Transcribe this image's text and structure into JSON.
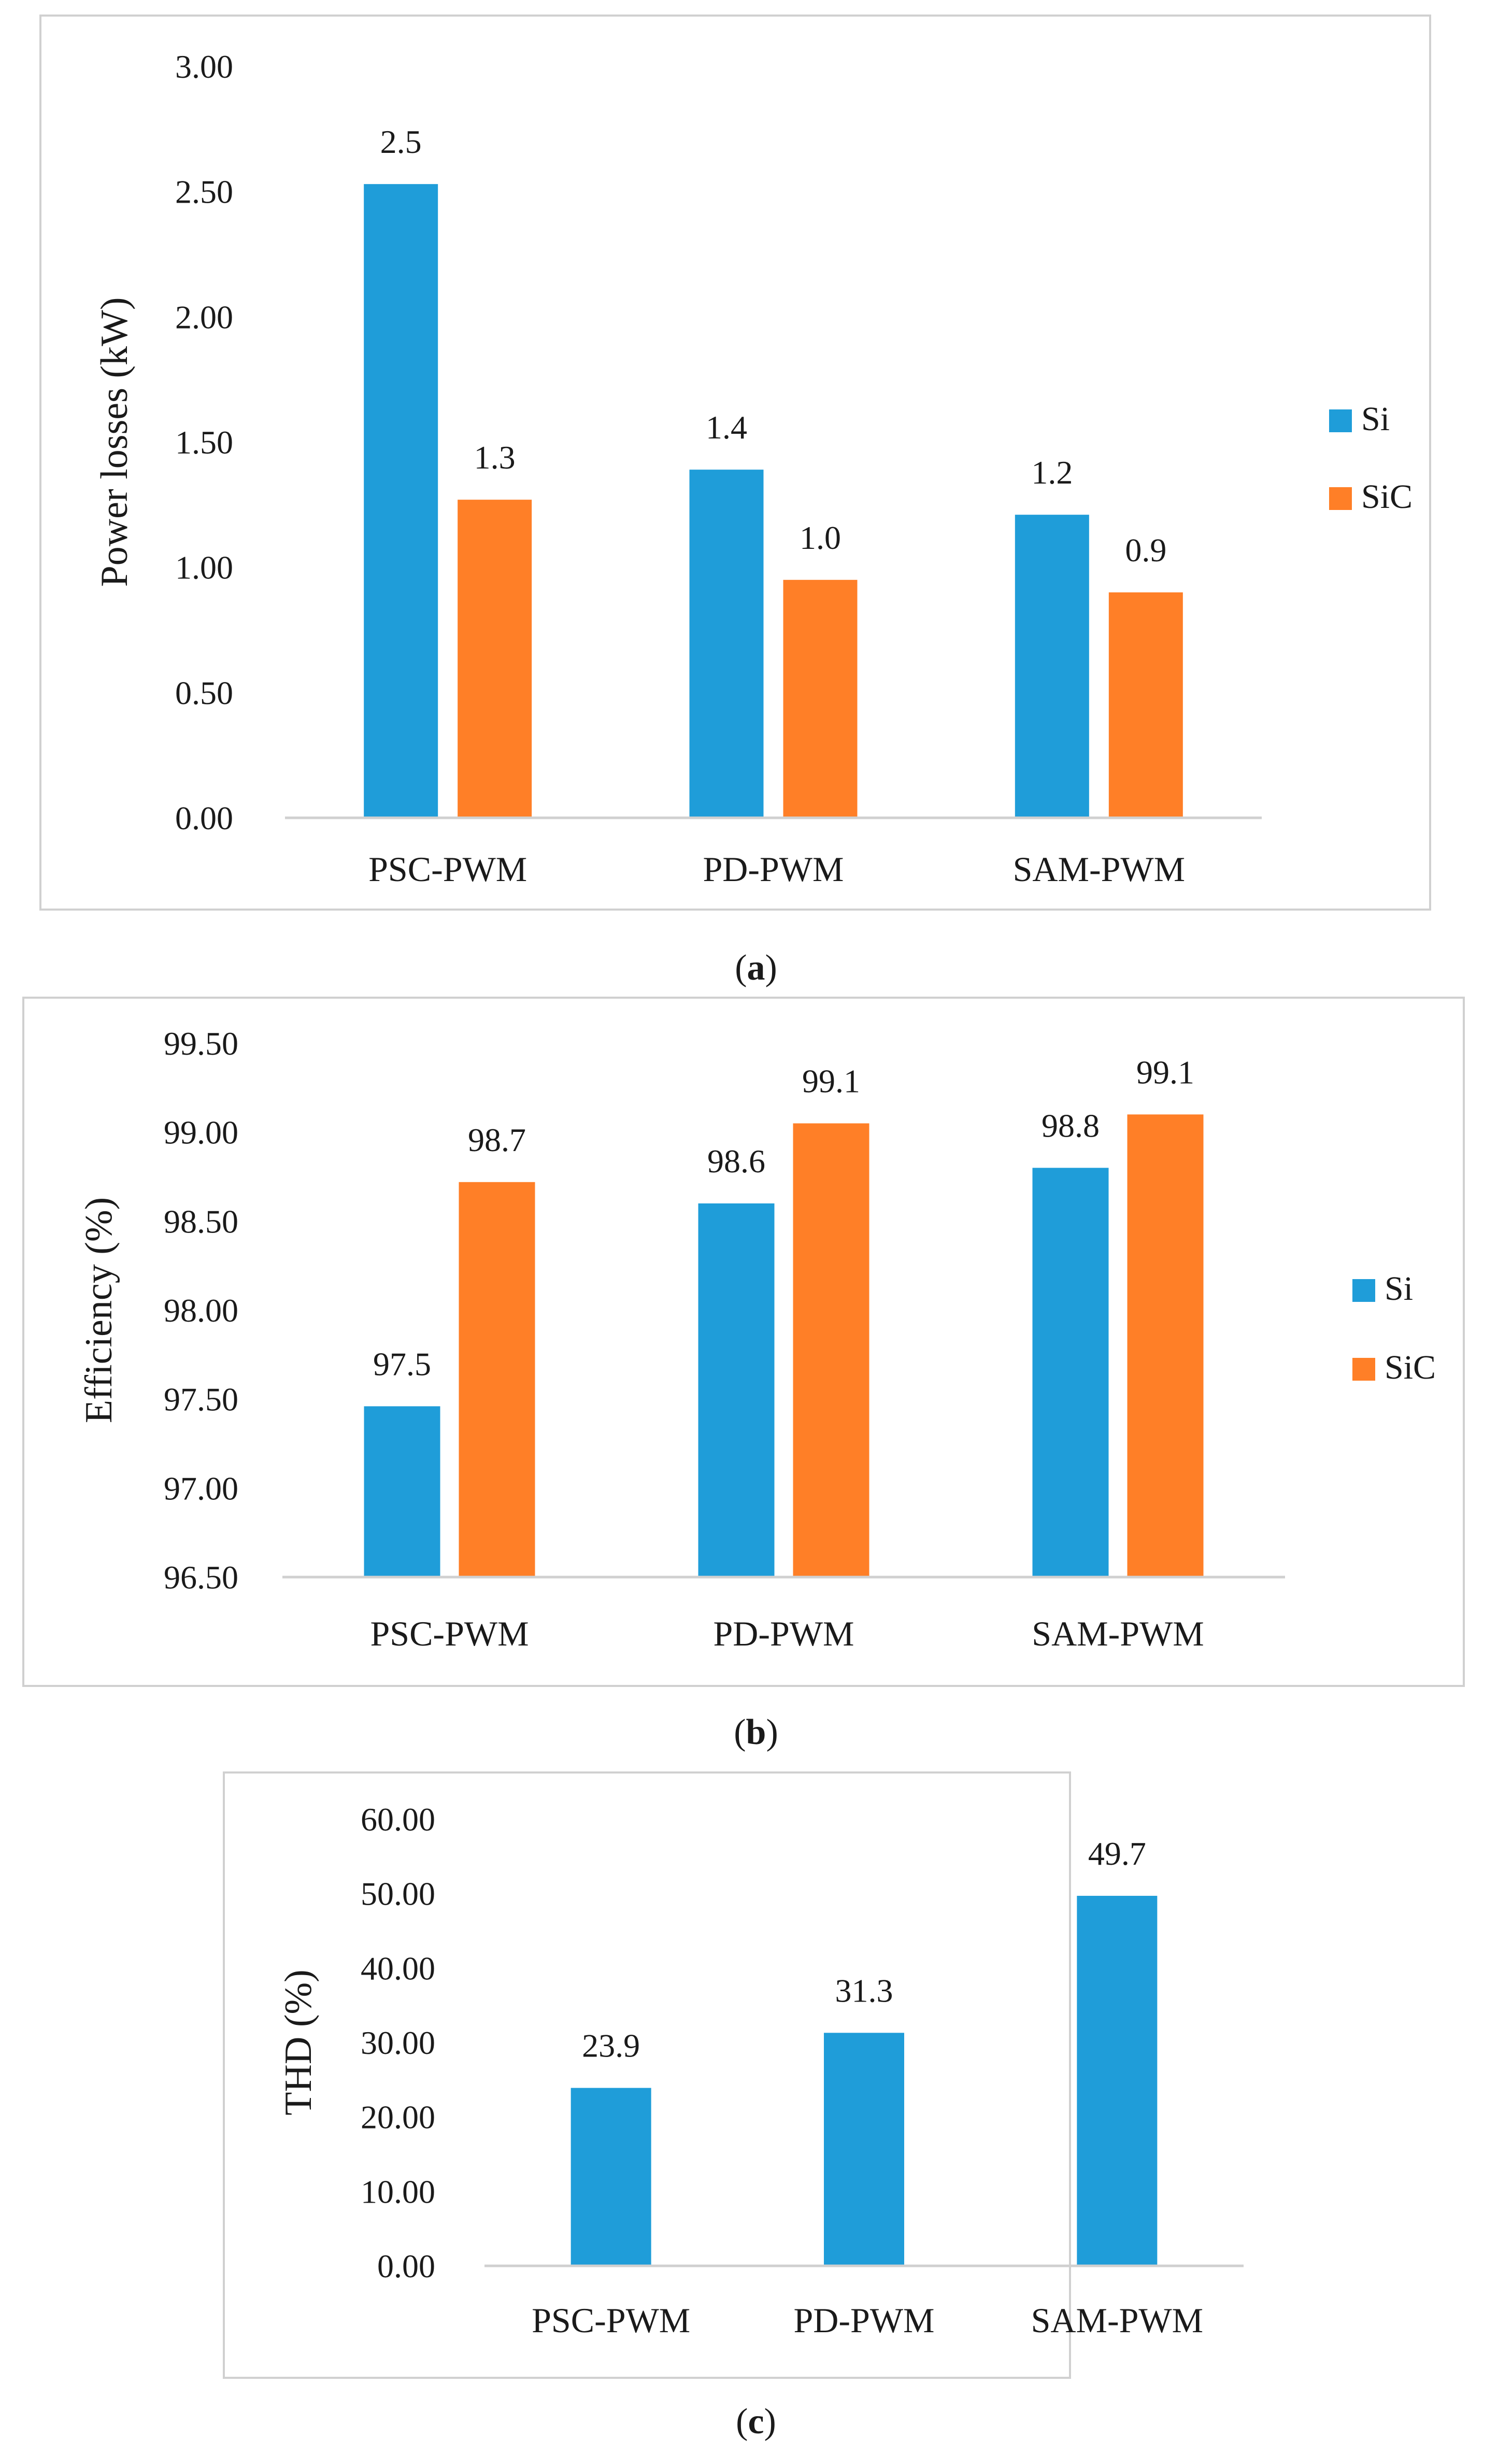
{
  "colors": {
    "si": "#1f9dd9",
    "sic": "#ff7f27"
  },
  "chart_data": [
    {
      "type": "bar",
      "ylabel": "Power losses (kW)",
      "categories": [
        "PSC-PWM",
        "PD-PWM",
        "SAM-PWM"
      ],
      "ylim": [
        0,
        3
      ],
      "yticks": [
        "0.00",
        "0.50",
        "1.00",
        "1.50",
        "2.00",
        "2.50",
        "3.00"
      ],
      "series": [
        {
          "name": "Si",
          "values": [
            2.53,
            1.39,
            1.21
          ],
          "labels": [
            "2.5",
            "1.4",
            "1.2"
          ]
        },
        {
          "name": "SiC",
          "values": [
            1.27,
            0.95,
            0.9
          ],
          "labels": [
            "1.3",
            "1.0",
            "0.9"
          ]
        }
      ],
      "legend": [
        "Si",
        "SiC"
      ],
      "caption_letter": "a"
    },
    {
      "type": "bar",
      "ylabel": "Efficiency (%)",
      "categories": [
        "PSC-PWM",
        "PD-PWM",
        "SAM-PWM"
      ],
      "ylim": [
        96.5,
        99.5
      ],
      "yticks": [
        "96.50",
        "97.00",
        "97.50",
        "98.00",
        "98.50",
        "99.00",
        "99.50"
      ],
      "series": [
        {
          "name": "Si",
          "values": [
            97.46,
            98.6,
            98.8
          ],
          "labels": [
            "97.5",
            "98.6",
            "98.8"
          ]
        },
        {
          "name": "SiC",
          "values": [
            98.72,
            99.05,
            99.1
          ],
          "labels": [
            "98.7",
            "99.1",
            "99.1"
          ]
        }
      ],
      "legend": [
        "Si",
        "SiC"
      ],
      "caption_letter": "b"
    },
    {
      "type": "bar",
      "ylabel": "THD (%)",
      "categories": [
        "PSC-PWM",
        "PD-PWM",
        "SAM-PWM"
      ],
      "ylim": [
        0,
        60
      ],
      "yticks": [
        "0.00",
        "10.00",
        "20.00",
        "30.00",
        "40.00",
        "50.00",
        "60.00"
      ],
      "series": [
        {
          "name": "Si",
          "values": [
            23.9,
            31.3,
            49.7
          ],
          "labels": [
            "23.9",
            "31.3",
            "49.7"
          ]
        }
      ],
      "legend": [],
      "caption_letter": "c"
    }
  ]
}
